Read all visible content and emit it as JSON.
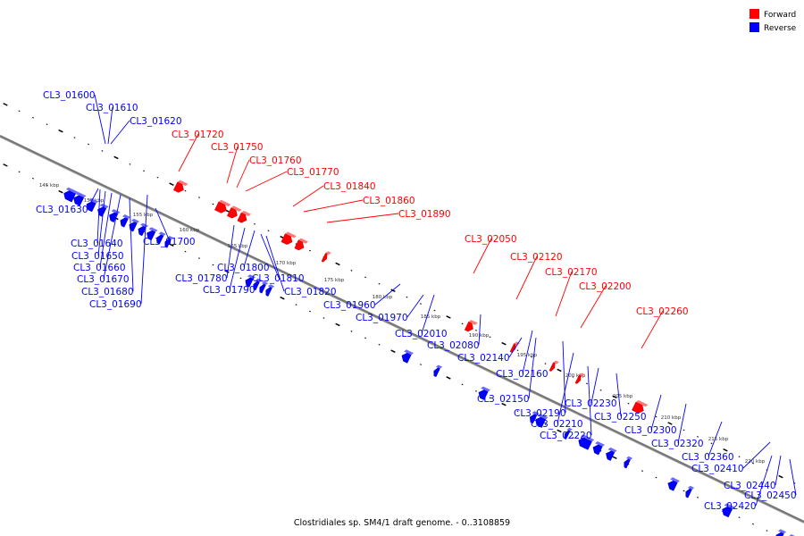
{
  "caption": "Clostridiales sp. SM4/1 draft genome. - 0..3108859",
  "legend": [
    {
      "label": "Forward",
      "color": "#ff0000"
    },
    {
      "label": "Reverse",
      "color": "#0000ff"
    }
  ],
  "colors": {
    "forward": "#ff0000",
    "reverse": "#0000ff",
    "backbone": "#777777"
  },
  "ticks": [
    "145 kbp",
    "150 kbp",
    "155 kbp",
    "160 kbp",
    "165 kbp",
    "170 kbp",
    "175 kbp",
    "180 kbp",
    "185 kbp",
    "190 kbp",
    "195 kbp",
    "200 kbp",
    "205 kbp",
    "210 kbp",
    "215 kbp",
    "220 kbp"
  ],
  "forward_genes": [
    "CL3_01720",
    "CL3_01750",
    "CL3_01760",
    "CL3_01770",
    "CL3_01840",
    "CL3_01860",
    "CL3_01890",
    "CL3_02050",
    "CL3_02120",
    "CL3_02170",
    "CL3_02200",
    "CL3_02260"
  ],
  "reverse_genes": [
    "CL3_01600",
    "CL3_01610",
    "CL3_01620",
    "CL3_01630",
    "CL3_01640",
    "CL3_01650",
    "CL3_01660",
    "CL3_01670",
    "CL3_01680",
    "CL3_01690",
    "CL3_01700",
    "CL3_01780",
    "CL3_01790",
    "CL3_01800",
    "CL3_01810",
    "CL3_01820",
    "CL3_01960",
    "CL3_01970",
    "CL3_02010",
    "CL3_02080",
    "CL3_02140",
    "CL3_02150",
    "CL3_02160",
    "CL3_02190",
    "CL3_02210",
    "CL3_02220",
    "CL3_02230",
    "CL3_02250",
    "CL3_02300",
    "CL3_02320",
    "CL3_02360",
    "CL3_02410",
    "CL3_02420",
    "CL3_02440",
    "CL3_02450"
  ]
}
